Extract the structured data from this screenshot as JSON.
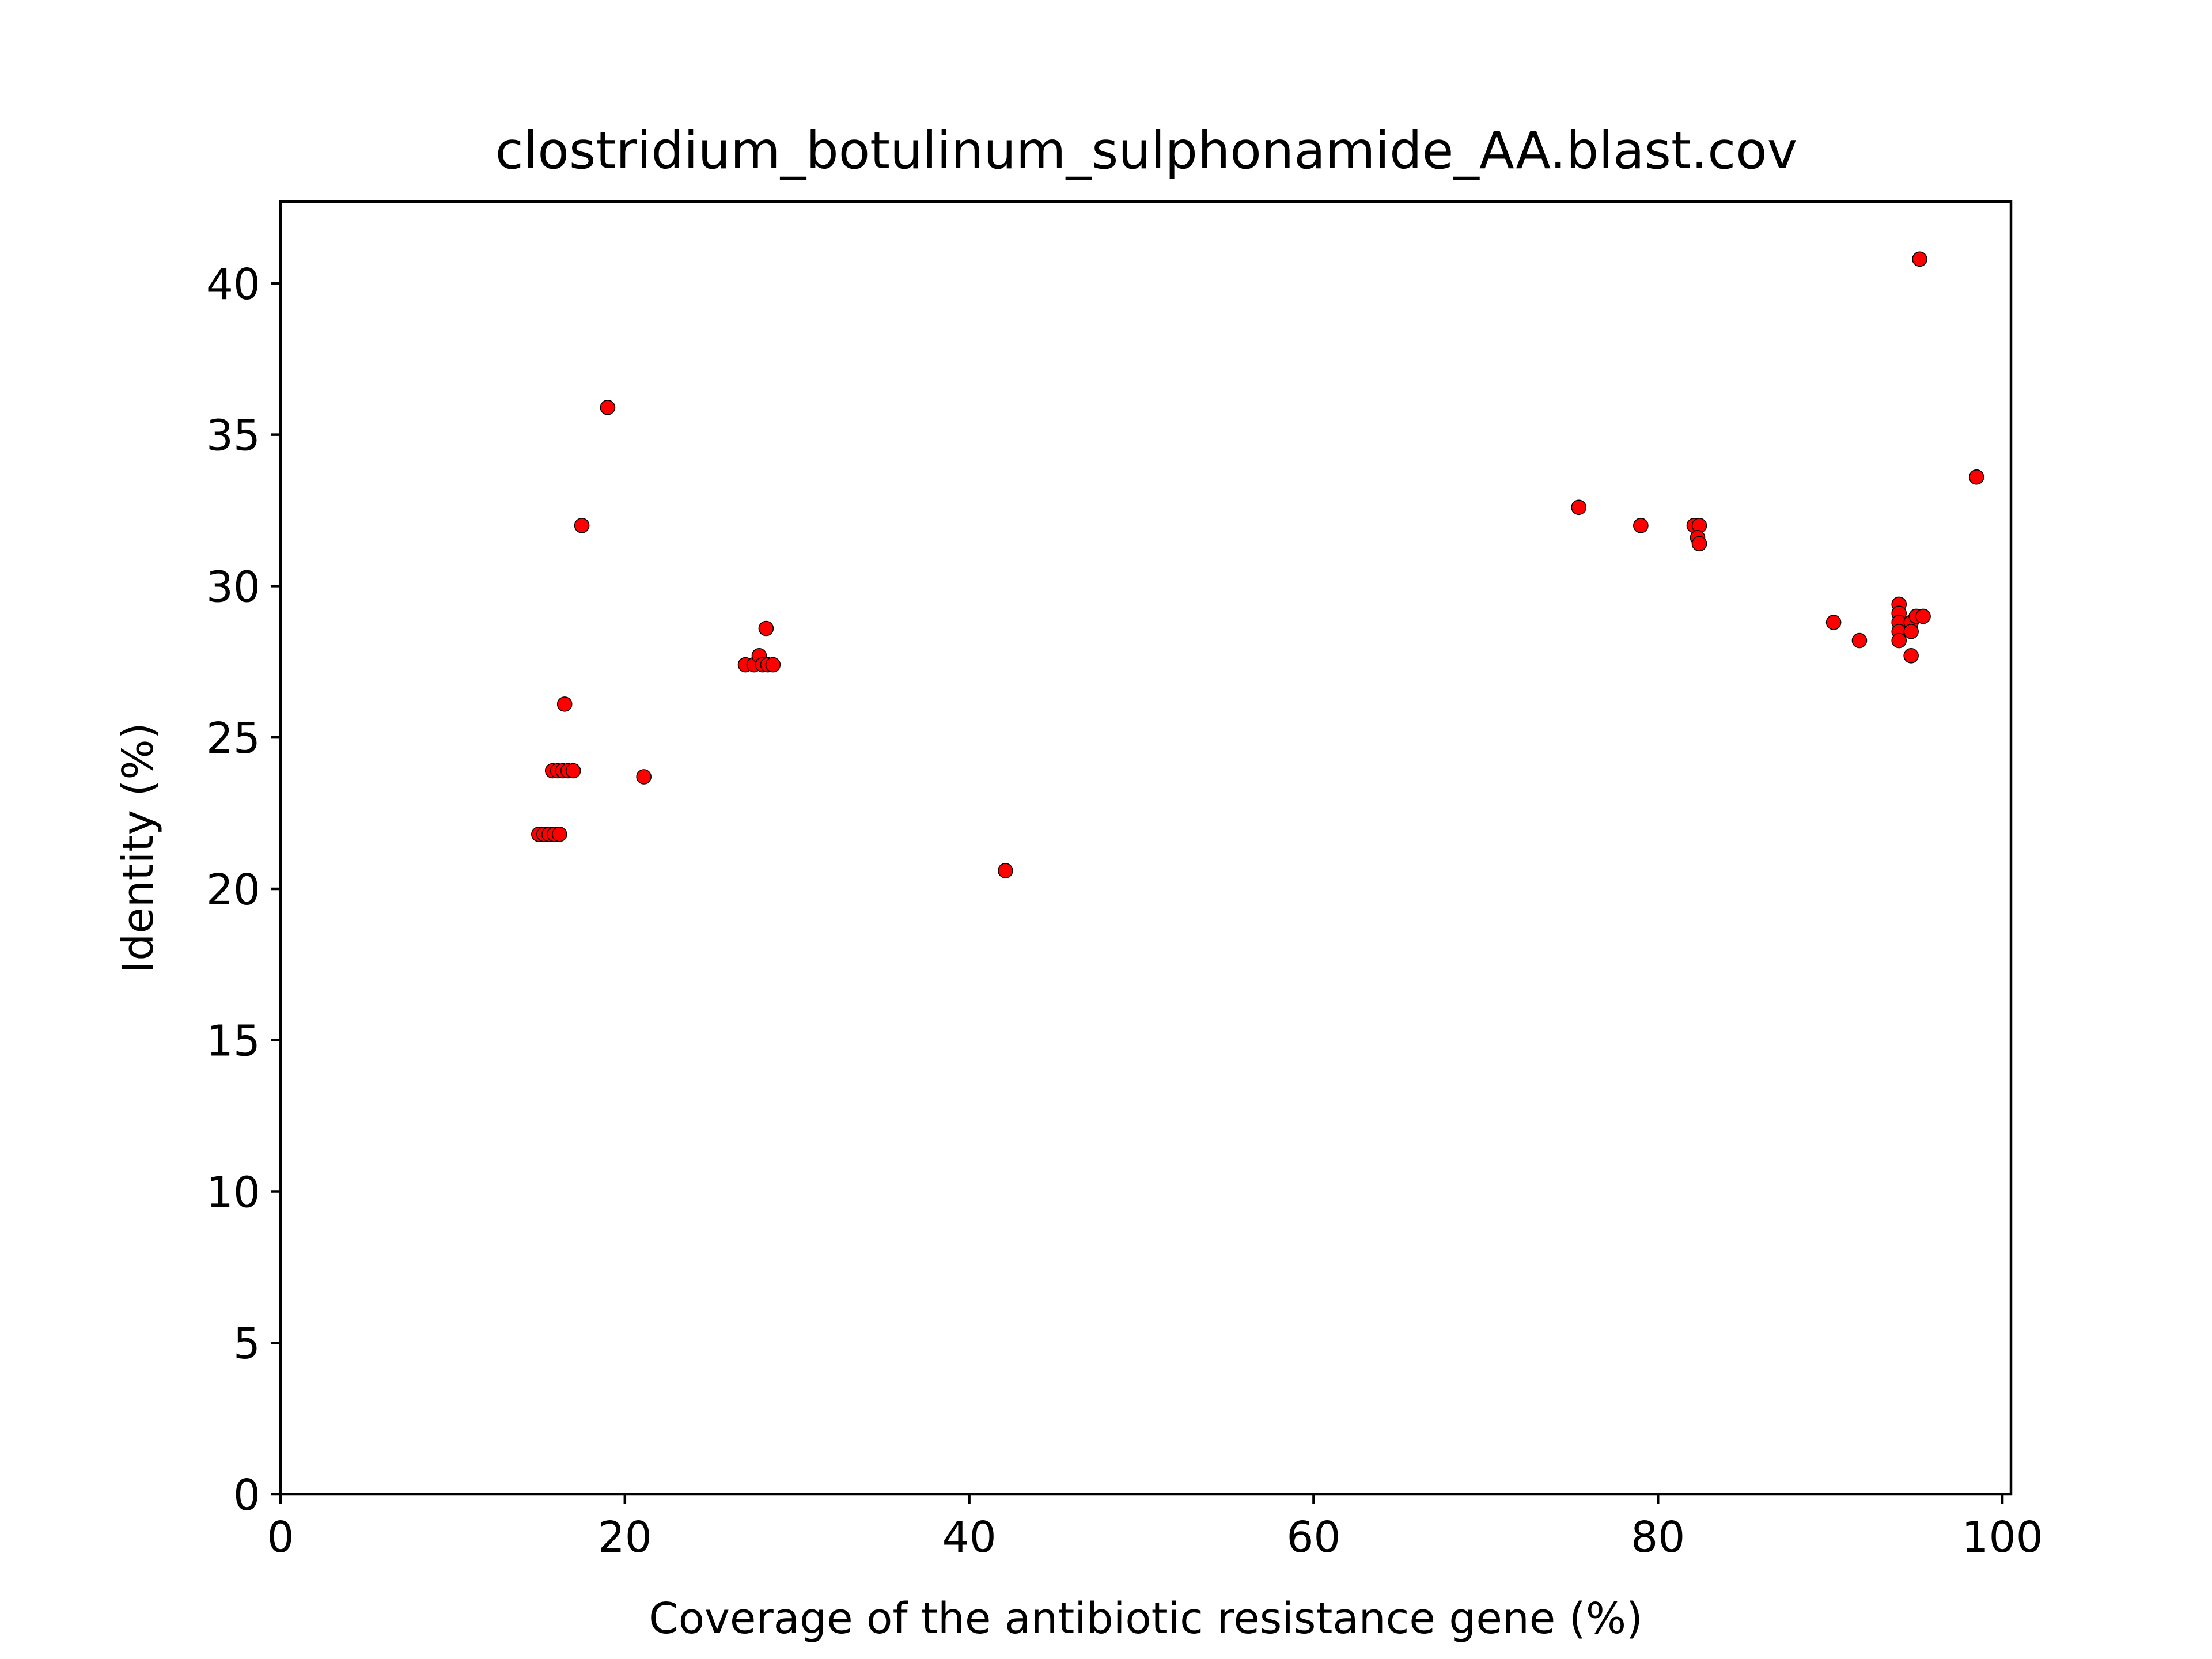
{
  "chart_data": {
    "type": "scatter",
    "title": "clostridium_botulinum_sulphonamide_AA.blast.cov",
    "xlabel": "Coverage of the antibiotic resistance gene (%)",
    "ylabel": "Identity (%)",
    "xlim": [
      0,
      100.5
    ],
    "ylim": [
      0,
      42.7
    ],
    "xticks": [
      0,
      20,
      40,
      60,
      80,
      100
    ],
    "yticks": [
      0,
      5,
      10,
      15,
      20,
      25,
      30,
      35,
      40
    ],
    "grid": false,
    "marker_color": "#ff0000",
    "marker_edge_color": "#000000",
    "points": [
      {
        "x": 15.0,
        "y": 21.8
      },
      {
        "x": 15.3,
        "y": 21.8
      },
      {
        "x": 15.6,
        "y": 21.8
      },
      {
        "x": 15.9,
        "y": 21.8
      },
      {
        "x": 16.2,
        "y": 21.8
      },
      {
        "x": 15.8,
        "y": 23.9
      },
      {
        "x": 16.1,
        "y": 23.9
      },
      {
        "x": 16.4,
        "y": 23.9
      },
      {
        "x": 16.7,
        "y": 23.9
      },
      {
        "x": 17.0,
        "y": 23.9
      },
      {
        "x": 16.5,
        "y": 26.1
      },
      {
        "x": 17.5,
        "y": 32.0
      },
      {
        "x": 19.0,
        "y": 35.9
      },
      {
        "x": 21.1,
        "y": 23.7
      },
      {
        "x": 27.0,
        "y": 27.4
      },
      {
        "x": 27.5,
        "y": 27.4
      },
      {
        "x": 27.8,
        "y": 27.7
      },
      {
        "x": 28.0,
        "y": 27.4
      },
      {
        "x": 28.3,
        "y": 27.4
      },
      {
        "x": 28.6,
        "y": 27.4
      },
      {
        "x": 28.2,
        "y": 28.6
      },
      {
        "x": 42.1,
        "y": 20.6
      },
      {
        "x": 75.4,
        "y": 32.6
      },
      {
        "x": 79.0,
        "y": 32.0
      },
      {
        "x": 82.1,
        "y": 32.0
      },
      {
        "x": 82.4,
        "y": 32.0
      },
      {
        "x": 82.3,
        "y": 31.6
      },
      {
        "x": 82.4,
        "y": 31.4
      },
      {
        "x": 90.2,
        "y": 28.8
      },
      {
        "x": 91.7,
        "y": 28.2
      },
      {
        "x": 94.0,
        "y": 29.4
      },
      {
        "x": 94.0,
        "y": 29.1
      },
      {
        "x": 94.0,
        "y": 28.8
      },
      {
        "x": 94.0,
        "y": 28.5
      },
      {
        "x": 94.0,
        "y": 28.2
      },
      {
        "x": 94.7,
        "y": 28.8
      },
      {
        "x": 94.7,
        "y": 28.5
      },
      {
        "x": 94.7,
        "y": 27.7
      },
      {
        "x": 95.0,
        "y": 29.0
      },
      {
        "x": 95.4,
        "y": 29.0
      },
      {
        "x": 95.2,
        "y": 40.8
      },
      {
        "x": 98.5,
        "y": 33.6
      }
    ]
  }
}
